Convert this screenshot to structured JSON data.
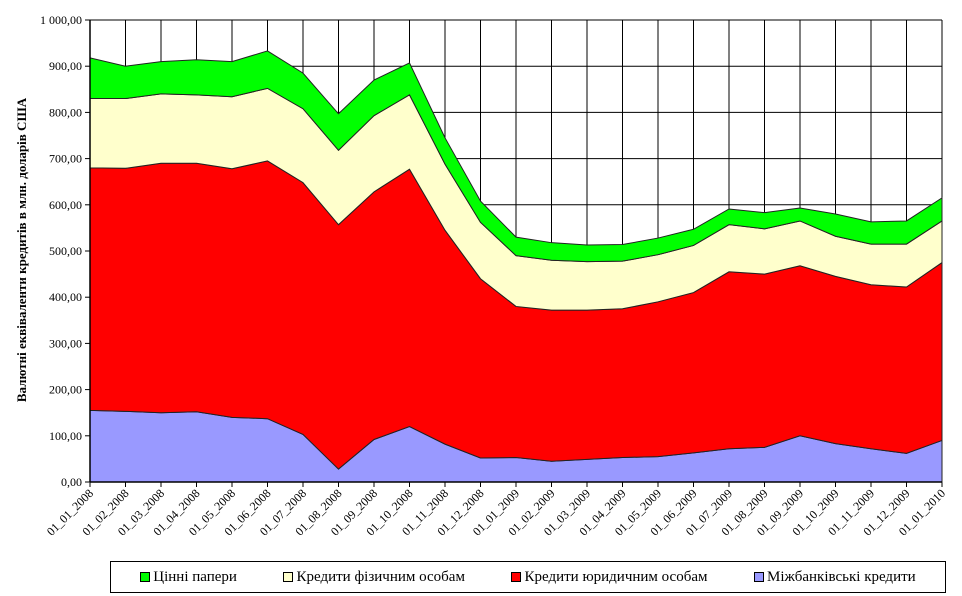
{
  "chart_data": {
    "type": "area",
    "stacked": true,
    "title": "",
    "xlabel": "",
    "ylabel": "Валютні еквіваленти кредитів в млн. доларів США",
    "ylim": [
      0,
      1000
    ],
    "yticks": [
      "0,00",
      "100,00",
      "200,00",
      "300,00",
      "400,00",
      "500,00",
      "600,00",
      "700,00",
      "800,00",
      "900,00",
      "1 000,00"
    ],
    "grid": true,
    "legend_position": "bottom",
    "categories": [
      "01_01_2008",
      "01_02_2008",
      "01_03_2008",
      "01_04_2008",
      "01_05_2008",
      "01_06_2008",
      "01_07_2008",
      "01_08_2008",
      "01_09_2008",
      "01_10_2008",
      "01_11_2008",
      "01_12_2008",
      "01_01_2009",
      "01_02_2009",
      "01_03_2009",
      "01_04_2009",
      "01_05_2009",
      "01_06_2009",
      "01_07_2009",
      "01_08_2009",
      "01_09_2009",
      "01_10_2009",
      "01_11_2009",
      "01_12_2009",
      "01_01_2010"
    ],
    "series": [
      {
        "name": "Міжбанківські кредити",
        "color": "#9999FF",
        "values": [
          155,
          153,
          150,
          152,
          140,
          137,
          103,
          28,
          92,
          120,
          82,
          52,
          53,
          45,
          49,
          53,
          55,
          63,
          72,
          75,
          100,
          83,
          72,
          62,
          90
        ]
      },
      {
        "name": "Кредити юридичним  особам",
        "color": "#FF0000",
        "values": [
          525,
          526,
          540,
          538,
          538,
          558,
          545,
          529,
          536,
          557,
          463,
          388,
          327,
          327,
          323,
          322,
          335,
          347,
          383,
          375,
          368,
          362,
          355,
          360,
          385
        ]
      },
      {
        "name": "Кредити фізичним  особам",
        "color": "#FFFFCC",
        "values": [
          150,
          151,
          150,
          148,
          156,
          157,
          160,
          161,
          165,
          161,
          143,
          122,
          110,
          108,
          105,
          103,
          102,
          102,
          102,
          98,
          97,
          87,
          88,
          93,
          90
        ]
      },
      {
        "name": "Цінні папери",
        "color": "#00FF00",
        "values": [
          88,
          70,
          70,
          76,
          76,
          81,
          77,
          79,
          77,
          69,
          57,
          46,
          40,
          38,
          36,
          36,
          36,
          35,
          34,
          35,
          28,
          48,
          48,
          50,
          50
        ]
      }
    ]
  },
  "legend": [
    {
      "label": "Цінні папери",
      "color": "#00FF00"
    },
    {
      "label": "Кредити фізичним  особам",
      "color": "#FFFFCC"
    },
    {
      "label": "Кредити юридичним  особам",
      "color": "#FF0000"
    },
    {
      "label": "Міжбанківські кредити",
      "color": "#9999FF"
    }
  ]
}
